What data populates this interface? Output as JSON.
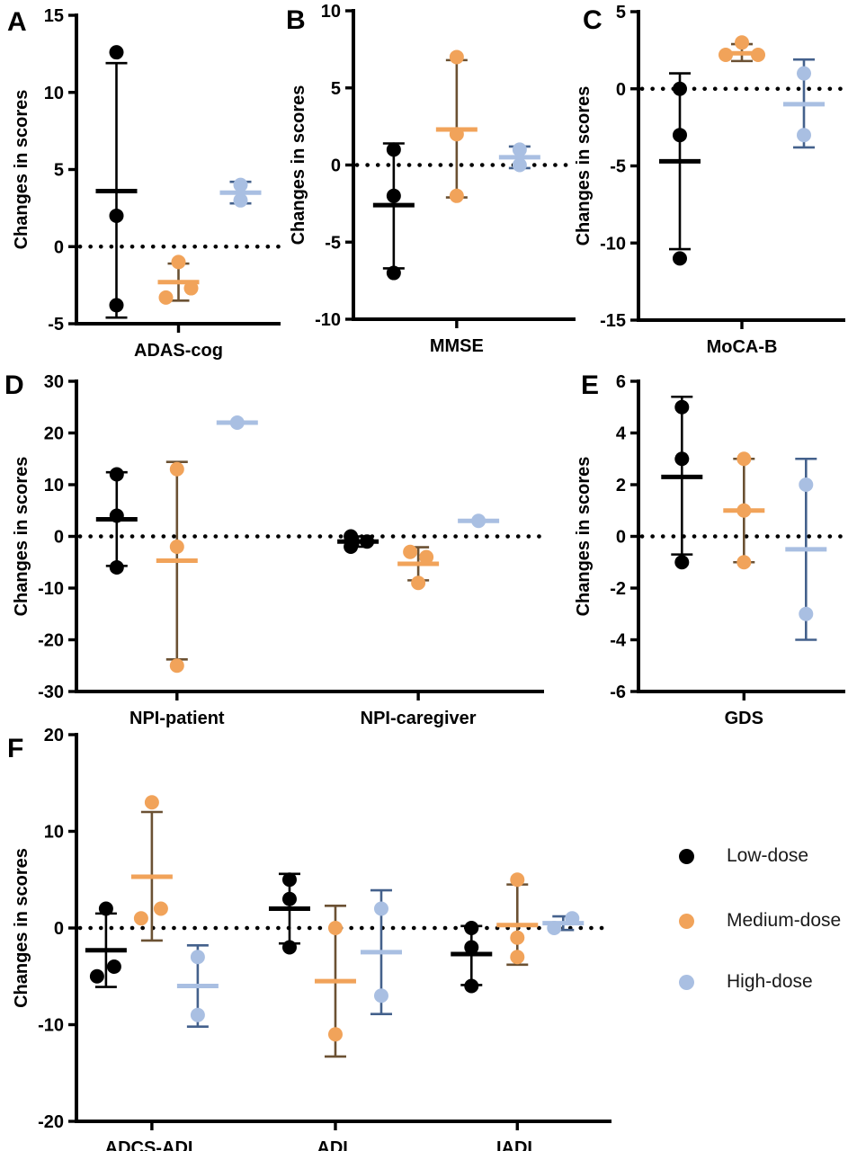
{
  "figure": {
    "background": "#ffffff",
    "ylabel_text": "Changes in scores"
  },
  "legend": {
    "items": [
      {
        "label": "Low-dose",
        "color": "#000000"
      },
      {
        "label": "Medium-dose",
        "color": "#F1A35A"
      },
      {
        "label": "High-dose",
        "color": "#A9BFE2"
      }
    ]
  },
  "dose_styles": {
    "Low-dose": {
      "fill": "#000000",
      "mean_color": "#000000",
      "err_color": "#000000"
    },
    "Medium-dose": {
      "fill": "#F1A35A",
      "mean_color": "#F1A35A",
      "err_color": "#6B5133"
    },
    "High-dose": {
      "fill": "#A9BFE2",
      "mean_color": "#A9BFE2",
      "err_color": "#44618C"
    }
  },
  "chart_data": [
    {
      "type": "scatter",
      "panel": "A",
      "ylabel": "Changes in scores",
      "ylim": [
        -5,
        15
      ],
      "yticks": [
        -5,
        0,
        5,
        10,
        15
      ],
      "zero_line": true,
      "categories": [
        "ADAS-cog"
      ],
      "series": [
        {
          "category": "ADAS-cog",
          "dose": "Low-dose",
          "points": [
            12.6,
            2,
            -3.8
          ],
          "mean": 3.6,
          "err": [
            -4.6,
            11.9
          ]
        },
        {
          "category": "ADAS-cog",
          "dose": "Medium-dose",
          "points": [
            -1,
            -2.7,
            -3.3
          ],
          "jitter": [
            0,
            14,
            -14
          ],
          "mean": -2.3,
          "err": [
            -3.5,
            -1.1
          ]
        },
        {
          "category": "ADAS-cog",
          "dose": "High-dose",
          "points": [
            4,
            3
          ],
          "mean": 3.5,
          "err": [
            2.8,
            4.2
          ]
        }
      ]
    },
    {
      "type": "scatter",
      "panel": "B",
      "ylabel": "Changes in scores",
      "ylim": [
        -10,
        10
      ],
      "yticks": [
        -10,
        -5,
        0,
        5,
        10
      ],
      "zero_line": true,
      "categories": [
        "MMSE"
      ],
      "series": [
        {
          "category": "MMSE",
          "dose": "Low-dose",
          "points": [
            1,
            -2,
            -7
          ],
          "mean": -2.6,
          "err": [
            -6.7,
            1.4
          ]
        },
        {
          "category": "MMSE",
          "dose": "Medium-dose",
          "points": [
            7,
            2,
            -2
          ],
          "mean": 2.3,
          "err": [
            -2.1,
            6.8
          ]
        },
        {
          "category": "MMSE",
          "dose": "High-dose",
          "points": [
            1,
            0
          ],
          "mean": 0.5,
          "err": [
            -0.2,
            1.2
          ]
        }
      ]
    },
    {
      "type": "scatter",
      "panel": "C",
      "ylabel": "Changes in scores",
      "ylim": [
        -15,
        5
      ],
      "yticks": [
        -15,
        -10,
        -5,
        0,
        5
      ],
      "zero_line": true,
      "categories": [
        "MoCA-B"
      ],
      "series": [
        {
          "category": "MoCA-B",
          "dose": "Low-dose",
          "points": [
            0,
            -3,
            -11
          ],
          "mean": -4.7,
          "err": [
            -10.4,
            1.0
          ]
        },
        {
          "category": "MoCA-B",
          "dose": "Medium-dose",
          "points": [
            3,
            2.2,
            2.2
          ],
          "jitter": [
            0,
            -18,
            18
          ],
          "mean": 2.3,
          "err": [
            1.8,
            2.9
          ]
        },
        {
          "category": "MoCA-B",
          "dose": "High-dose",
          "points": [
            1,
            -3
          ],
          "mean": -1.0,
          "err": [
            -3.8,
            1.9
          ]
        }
      ]
    },
    {
      "type": "scatter",
      "panel": "D",
      "ylabel": "Changes in scores",
      "ylim": [
        -30,
        30
      ],
      "yticks": [
        -30,
        -20,
        -10,
        0,
        10,
        20,
        30
      ],
      "zero_line": true,
      "categories": [
        "NPI-patient",
        "NPI-caregiver"
      ],
      "series": [
        {
          "category": "NPI-patient",
          "dose": "Low-dose",
          "points": [
            12,
            4,
            -6
          ],
          "mean": 3.3,
          "err": [
            -5.7,
            12.4
          ]
        },
        {
          "category": "NPI-patient",
          "dose": "Medium-dose",
          "points": [
            13,
            -2,
            -25
          ],
          "mean": -4.7,
          "err": [
            -23.8,
            14.4
          ]
        },
        {
          "category": "NPI-patient",
          "dose": "High-dose",
          "points": [
            22
          ],
          "mean": 22
        },
        {
          "category": "NPI-caregiver",
          "dose": "Low-dose",
          "points": [
            0,
            -1,
            -2
          ],
          "jitter": [
            -8,
            10,
            -8
          ],
          "mean": -1.0,
          "err": [
            -2.0,
            0.0
          ]
        },
        {
          "category": "NPI-caregiver",
          "dose": "Medium-dose",
          "points": [
            -3,
            -4,
            -9
          ],
          "jitter": [
            -9,
            9,
            0
          ],
          "mean": -5.3,
          "err": [
            -8.5,
            -2.1
          ]
        },
        {
          "category": "NPI-caregiver",
          "dose": "High-dose",
          "points": [
            3
          ],
          "mean": 3
        }
      ]
    },
    {
      "type": "scatter",
      "panel": "E",
      "ylabel": "Changes in scores",
      "ylim": [
        -6,
        6
      ],
      "yticks": [
        -6,
        -4,
        -2,
        0,
        2,
        4,
        6
      ],
      "zero_line": true,
      "categories": [
        "GDS"
      ],
      "series": [
        {
          "category": "GDS",
          "dose": "Low-dose",
          "points": [
            5,
            3,
            -1
          ],
          "mean": 2.3,
          "err": [
            -0.7,
            5.4
          ]
        },
        {
          "category": "GDS",
          "dose": "Medium-dose",
          "points": [
            3,
            1,
            -1
          ],
          "mean": 1.0,
          "err": [
            -1.0,
            3.0
          ]
        },
        {
          "category": "GDS",
          "dose": "High-dose",
          "points": [
            2,
            -3
          ],
          "mean": -0.5,
          "err": [
            -4.0,
            3.0
          ]
        }
      ]
    },
    {
      "type": "scatter",
      "panel": "F",
      "ylabel": "Changes in scores",
      "ylim": [
        -20,
        20
      ],
      "yticks": [
        -20,
        -10,
        0,
        10,
        20
      ],
      "zero_line": true,
      "categories": [
        "ADCS-ADL",
        "ADL",
        "IADL"
      ],
      "series": [
        {
          "category": "ADCS-ADL",
          "dose": "Low-dose",
          "points": [
            2,
            -4,
            -5
          ],
          "jitter": [
            0,
            9,
            -10
          ],
          "mean": -2.3,
          "err": [
            -6.1,
            1.5
          ]
        },
        {
          "category": "ADCS-ADL",
          "dose": "Medium-dose",
          "points": [
            13,
            2,
            1
          ],
          "jitter": [
            0,
            10,
            -12
          ],
          "mean": 5.3,
          "err": [
            -1.3,
            12.0
          ]
        },
        {
          "category": "ADCS-ADL",
          "dose": "High-dose",
          "points": [
            -3,
            -9
          ],
          "mean": -6.0,
          "err": [
            -10.2,
            -1.8
          ]
        },
        {
          "category": "ADL",
          "dose": "Low-dose",
          "points": [
            5,
            3,
            -2
          ],
          "mean": 2.0,
          "err": [
            -1.6,
            5.6
          ]
        },
        {
          "category": "ADL",
          "dose": "Medium-dose",
          "points": [
            0,
            -11
          ],
          "mean": -5.5,
          "err": [
            -13.3,
            2.3
          ]
        },
        {
          "category": "ADL",
          "dose": "High-dose",
          "points": [
            2,
            -7
          ],
          "mean": -2.5,
          "err": [
            -8.9,
            3.9
          ]
        },
        {
          "category": "IADL",
          "dose": "Low-dose",
          "points": [
            0,
            -2,
            -6
          ],
          "mean": -2.7,
          "err": [
            -5.9,
            0.2
          ]
        },
        {
          "category": "IADL",
          "dose": "Medium-dose",
          "points": [
            5,
            -1,
            -3
          ],
          "mean": 0.3,
          "err": [
            -3.8,
            4.5
          ]
        },
        {
          "category": "IADL",
          "dose": "High-dose",
          "points": [
            1,
            0
          ],
          "jitter": [
            10,
            -10
          ],
          "mean": 0.5,
          "err": [
            -0.2,
            1.2
          ]
        }
      ]
    }
  ]
}
